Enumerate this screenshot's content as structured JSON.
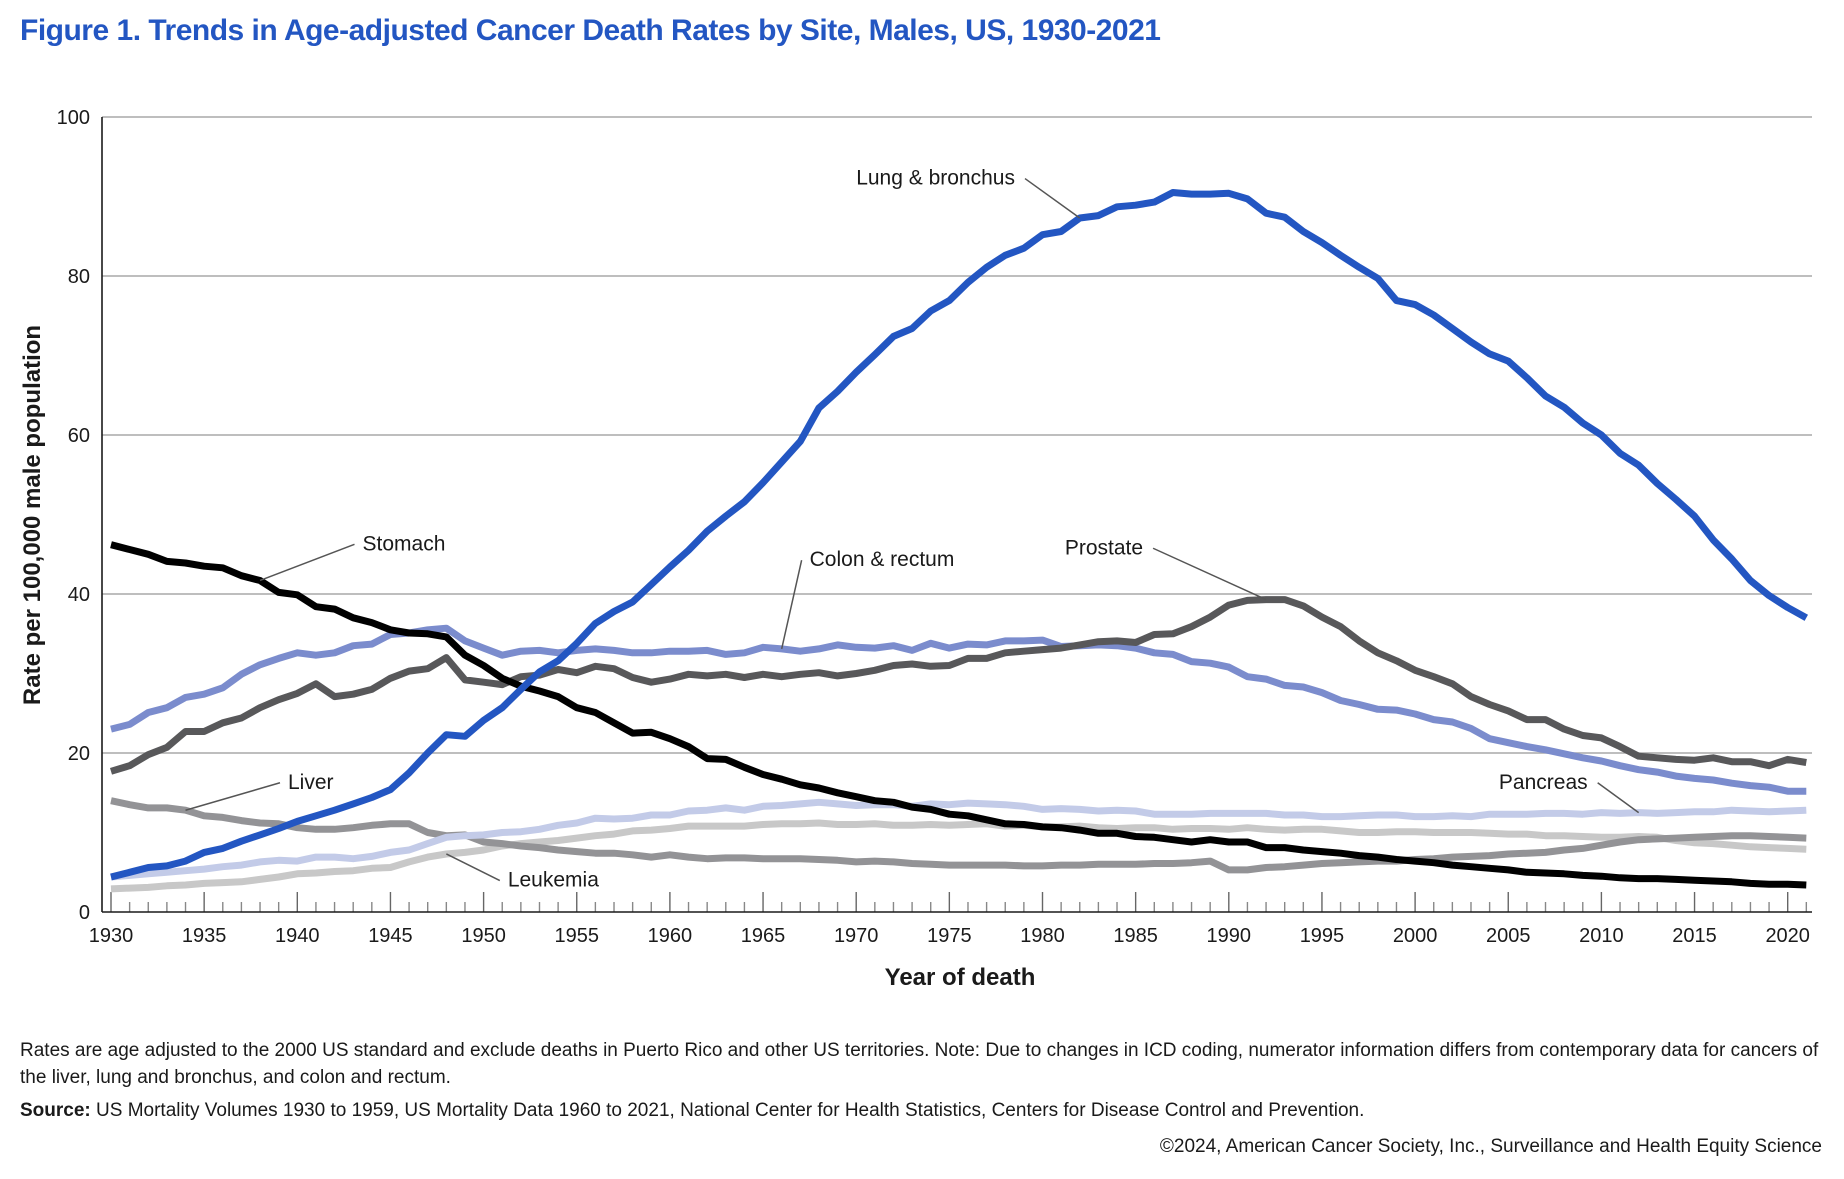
{
  "title": "Figure 1. Trends in Age-adjusted Cancer Death Rates by Site, Males, US, 1930-2021",
  "footnote": "Rates are age adjusted to the 2000 US standard and exclude deaths in Puerto Rico and other US territories. Note: Due to changes in ICD coding, numerator information differs from contemporary data for cancers of the liver, lung and bronchus, and colon and rectum.",
  "source_label": "Source:",
  "source_text": " US Mortality Volumes 1930 to 1959, US Mortality Data 1960 to 2021, National Center for Health Statistics, Centers for Disease Control and Prevention.",
  "copyright": "©2024, American Cancer Society, Inc., Surveillance and Health Equity Science",
  "chart_data": {
    "type": "line",
    "title": "Figure 1. Trends in Age-adjusted Cancer Death Rates by Site, Males, US, 1930-2021",
    "xlabel": "Year of death",
    "ylabel": "Rate per 100,000 male population",
    "xlim": [
      1930,
      2021
    ],
    "ylim": [
      0,
      100
    ],
    "x_start": 1930,
    "x_end": 2021,
    "x_tick_labels": [
      "1930",
      "1935",
      "1940",
      "1945",
      "1950",
      "1955",
      "1960",
      "1965",
      "1970",
      "1975",
      "1980",
      "1985",
      "1990",
      "1995",
      "2000",
      "2005",
      "2010",
      "2015",
      "2020"
    ],
    "y_tick_labels": [
      "0",
      "20",
      "40",
      "60",
      "80",
      "100"
    ],
    "y_ticks": [
      0,
      20,
      40,
      60,
      80,
      100
    ],
    "grid": "horizontal",
    "legend": "inline annotations",
    "series": [
      {
        "name": "Leukemia",
        "color": "#c8c8c8",
        "values": [
          2.9,
          3.0,
          3.1,
          3.3,
          3.4,
          3.6,
          3.7,
          3.8,
          4.1,
          4.4,
          4.8,
          4.9,
          5.1,
          5.2,
          5.5,
          5.6,
          6.3,
          6.9,
          7.3,
          7.5,
          7.8,
          8.3,
          8.6,
          8.8,
          9.0,
          9.3,
          9.6,
          9.8,
          10.2,
          10.3,
          10.5,
          10.8,
          10.8,
          10.8,
          10.8,
          11.0,
          11.1,
          11.1,
          11.2,
          11.0,
          11.0,
          11.1,
          10.9,
          10.9,
          11.0,
          10.9,
          11.0,
          11.1,
          10.8,
          10.9,
          10.7,
          10.7,
          10.8,
          10.6,
          10.5,
          10.6,
          10.6,
          10.4,
          10.5,
          10.5,
          10.4,
          10.6,
          10.4,
          10.3,
          10.4,
          10.4,
          10.2,
          10.0,
          10.0,
          10.1,
          10.1,
          10.0,
          10.0,
          10.0,
          9.9,
          9.8,
          9.8,
          9.6,
          9.6,
          9.5,
          9.4,
          9.4,
          9.5,
          9.4,
          9.0,
          8.7,
          8.6,
          8.4,
          8.2,
          8.1,
          8.0,
          7.9
        ]
      },
      {
        "name": "Liver",
        "color": "#939396",
        "values": [
          14.0,
          13.5,
          13.1,
          13.1,
          12.8,
          12.1,
          11.9,
          11.5,
          11.2,
          11.1,
          10.6,
          10.4,
          10.4,
          10.6,
          10.9,
          11.1,
          11.1,
          10.0,
          9.6,
          9.7,
          8.8,
          8.6,
          8.3,
          8.1,
          7.8,
          7.6,
          7.4,
          7.4,
          7.2,
          6.9,
          7.2,
          6.9,
          6.7,
          6.8,
          6.8,
          6.7,
          6.7,
          6.7,
          6.6,
          6.5,
          6.3,
          6.4,
          6.3,
          6.1,
          6.0,
          5.9,
          5.9,
          5.9,
          5.9,
          5.8,
          5.8,
          5.9,
          5.9,
          6.0,
          6.0,
          6.0,
          6.1,
          6.1,
          6.2,
          6.4,
          5.3,
          5.3,
          5.6,
          5.7,
          5.9,
          6.1,
          6.2,
          6.3,
          6.4,
          6.4,
          6.6,
          6.7,
          6.9,
          7.0,
          7.1,
          7.3,
          7.4,
          7.5,
          7.8,
          8.0,
          8.4,
          8.8,
          9.1,
          9.2,
          9.3,
          9.4,
          9.5,
          9.6,
          9.6,
          9.5,
          9.4,
          9.3
        ]
      },
      {
        "name": "Pancreas",
        "color": "#c3cbe8",
        "values": [
          4.4,
          4.6,
          4.8,
          5.0,
          5.2,
          5.4,
          5.7,
          5.9,
          6.3,
          6.5,
          6.4,
          6.9,
          6.9,
          6.7,
          7.0,
          7.5,
          7.8,
          8.6,
          9.4,
          9.6,
          9.7,
          10.0,
          10.1,
          10.4,
          10.9,
          11.2,
          11.8,
          11.7,
          11.8,
          12.2,
          12.2,
          12.7,
          12.8,
          13.1,
          12.8,
          13.3,
          13.4,
          13.6,
          13.8,
          13.6,
          13.4,
          13.5,
          13.5,
          13.3,
          13.6,
          13.5,
          13.7,
          13.6,
          13.5,
          13.3,
          12.9,
          13.0,
          12.9,
          12.7,
          12.8,
          12.7,
          12.3,
          12.3,
          12.3,
          12.4,
          12.4,
          12.4,
          12.4,
          12.2,
          12.2,
          12.0,
          12.0,
          12.1,
          12.2,
          12.2,
          12.0,
          12.0,
          12.1,
          12.0,
          12.3,
          12.3,
          12.3,
          12.4,
          12.4,
          12.3,
          12.5,
          12.4,
          12.5,
          12.4,
          12.5,
          12.6,
          12.6,
          12.8,
          12.7,
          12.6,
          12.7,
          12.8
        ]
      },
      {
        "name": "Colon & rectum",
        "color": "#7b8ccd",
        "values": [
          23.0,
          23.6,
          25.1,
          25.7,
          27.0,
          27.4,
          28.2,
          29.9,
          31.1,
          31.9,
          32.6,
          32.3,
          32.6,
          33.5,
          33.7,
          34.9,
          35.1,
          35.5,
          35.7,
          34.1,
          33.2,
          32.3,
          32.8,
          32.9,
          32.6,
          32.9,
          33.1,
          32.9,
          32.6,
          32.6,
          32.8,
          32.8,
          32.9,
          32.4,
          32.6,
          33.3,
          33.1,
          32.8,
          33.1,
          33.6,
          33.3,
          33.2,
          33.5,
          32.9,
          33.8,
          33.2,
          33.7,
          33.6,
          34.1,
          34.1,
          34.2,
          33.4,
          33.5,
          33.6,
          33.5,
          33.2,
          32.6,
          32.4,
          31.5,
          31.3,
          30.8,
          29.6,
          29.3,
          28.5,
          28.3,
          27.6,
          26.6,
          26.1,
          25.5,
          25.4,
          24.9,
          24.2,
          23.9,
          23.1,
          21.8,
          21.3,
          20.8,
          20.4,
          19.9,
          19.4,
          19.0,
          18.4,
          17.9,
          17.6,
          17.1,
          16.8,
          16.6,
          16.2,
          15.9,
          15.7,
          15.2,
          15.2
        ]
      },
      {
        "name": "Prostate",
        "color": "#58585a",
        "values": [
          17.7,
          18.4,
          19.8,
          20.7,
          22.7,
          22.7,
          23.8,
          24.4,
          25.7,
          26.7,
          27.5,
          28.7,
          27.1,
          27.4,
          28.0,
          29.4,
          30.3,
          30.6,
          32.0,
          29.2,
          28.9,
          28.6,
          29.6,
          29.8,
          30.5,
          30.1,
          30.9,
          30.6,
          29.5,
          28.9,
          29.3,
          29.9,
          29.7,
          29.9,
          29.5,
          29.9,
          29.6,
          29.9,
          30.1,
          29.7,
          30.0,
          30.4,
          31.0,
          31.2,
          30.9,
          31.0,
          31.9,
          31.9,
          32.6,
          32.8,
          33.0,
          33.2,
          33.6,
          34.0,
          34.1,
          33.9,
          34.9,
          35.0,
          35.9,
          37.1,
          38.6,
          39.2,
          39.3,
          39.3,
          38.5,
          37.1,
          35.9,
          34.1,
          32.6,
          31.6,
          30.4,
          29.6,
          28.7,
          27.1,
          26.1,
          25.3,
          24.2,
          24.2,
          23.0,
          22.2,
          21.9,
          20.8,
          19.6,
          19.4,
          19.2,
          19.1,
          19.4,
          18.9,
          18.9,
          18.4,
          19.2,
          18.8
        ]
      },
      {
        "name": "Stomach",
        "color": "#000000",
        "values": [
          46.2,
          45.6,
          45.0,
          44.1,
          43.9,
          43.5,
          43.3,
          42.3,
          41.7,
          40.2,
          39.9,
          38.4,
          38.1,
          37.0,
          36.4,
          35.5,
          35.1,
          35.0,
          34.6,
          32.3,
          31.0,
          29.4,
          28.4,
          27.8,
          27.1,
          25.7,
          25.1,
          23.8,
          22.5,
          22.6,
          21.8,
          20.8,
          19.3,
          19.2,
          18.2,
          17.3,
          16.7,
          16.0,
          15.6,
          15.0,
          14.5,
          14.0,
          13.8,
          13.2,
          12.9,
          12.3,
          12.1,
          11.6,
          11.1,
          11.0,
          10.7,
          10.6,
          10.3,
          9.9,
          9.9,
          9.5,
          9.4,
          9.1,
          8.8,
          9.1,
          8.8,
          8.8,
          8.1,
          8.1,
          7.8,
          7.6,
          7.4,
          7.1,
          6.9,
          6.6,
          6.4,
          6.2,
          5.9,
          5.7,
          5.5,
          5.3,
          5.0,
          4.9,
          4.8,
          4.6,
          4.5,
          4.3,
          4.2,
          4.2,
          4.1,
          4.0,
          3.9,
          3.8,
          3.6,
          3.5,
          3.5,
          3.4
        ]
      },
      {
        "name": "Lung & bronchus",
        "color": "#2356c2",
        "values": [
          4.4,
          5.0,
          5.6,
          5.8,
          6.4,
          7.5,
          8.0,
          8.9,
          9.7,
          10.5,
          11.4,
          12.1,
          12.8,
          13.6,
          14.4,
          15.4,
          17.5,
          20.0,
          22.3,
          22.1,
          24.1,
          25.7,
          28.0,
          30.2,
          31.6,
          33.8,
          36.3,
          37.8,
          39.0,
          41.2,
          43.4,
          45.5,
          47.9,
          49.8,
          51.6,
          54.0,
          56.6,
          59.2,
          63.4,
          65.5,
          67.9,
          70.1,
          72.4,
          73.4,
          75.6,
          76.9,
          79.2,
          81.1,
          82.6,
          83.5,
          85.2,
          85.6,
          87.3,
          87.6,
          88.7,
          88.9,
          89.3,
          90.5,
          90.3,
          90.3,
          90.4,
          89.7,
          87.9,
          87.4,
          85.6,
          84.2,
          82.6,
          81.1,
          79.7,
          76.9,
          76.4,
          75.1,
          73.4,
          71.7,
          70.2,
          69.3,
          67.2,
          64.9,
          63.5,
          61.5,
          60.0,
          57.7,
          56.2,
          53.9,
          51.9,
          49.8,
          46.8,
          44.4,
          41.7,
          39.8,
          38.3,
          37.0
        ]
      }
    ],
    "annotations": [
      {
        "label": "Lung & bronchus",
        "series": "Lung & bronchus",
        "anchor_year": 1982,
        "text_year": 1970,
        "text_value": 91.5
      },
      {
        "label": "Stomach",
        "series": "Stomach",
        "anchor_year": 1938,
        "text_year": 1943.5,
        "text_value": 45.5
      },
      {
        "label": "Colon & rectum",
        "series": "Colon & rectum",
        "anchor_year": 1966,
        "text_year": 1967.5,
        "text_value": 43.5
      },
      {
        "label": "Prostate",
        "series": "Prostate",
        "anchor_year": 1992,
        "text_year": 1981.2,
        "text_value": 45.0
      },
      {
        "label": "Liver",
        "series": "Liver",
        "anchor_year": 1934,
        "text_year": 1939.5,
        "text_value": 15.5
      },
      {
        "label": "Leukemia",
        "series": "Leukemia",
        "anchor_year": 1948,
        "text_year": 1951.3,
        "text_value": 3.2
      },
      {
        "label": "Pancreas",
        "series": "Pancreas",
        "anchor_year": 2012,
        "text_year": 2004.5,
        "text_value": 15.5
      }
    ]
  }
}
